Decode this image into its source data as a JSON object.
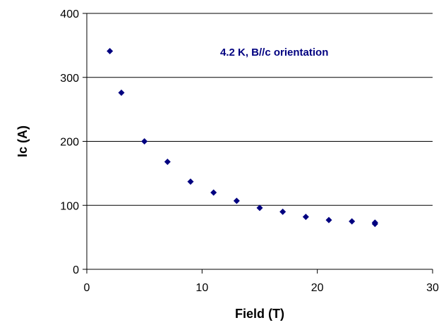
{
  "chart_data": {
    "type": "scatter",
    "title": "",
    "xlabel": "Field (T)",
    "ylabel": "Ic (A)",
    "xlim": [
      0,
      30
    ],
    "ylim": [
      0,
      400
    ],
    "x_ticks": [
      "0",
      "10",
      "20",
      "30"
    ],
    "y_ticks": [
      "0",
      "100",
      "200",
      "300",
      "400"
    ],
    "grid": "horizontal",
    "annotation": "4.2 K, B//c orientation",
    "marker": "diamond",
    "series": [
      {
        "color": "#000080",
        "points": [
          [
            2,
            341
          ],
          [
            3,
            276
          ],
          [
            5,
            200
          ],
          [
            7,
            168
          ],
          [
            9,
            137
          ],
          [
            11,
            120
          ],
          [
            13,
            107
          ],
          [
            15,
            96
          ],
          [
            17,
            90
          ],
          [
            19,
            82
          ],
          [
            21,
            77
          ],
          [
            23,
            75
          ],
          [
            25,
            73
          ],
          [
            25,
            71
          ]
        ]
      }
    ]
  }
}
